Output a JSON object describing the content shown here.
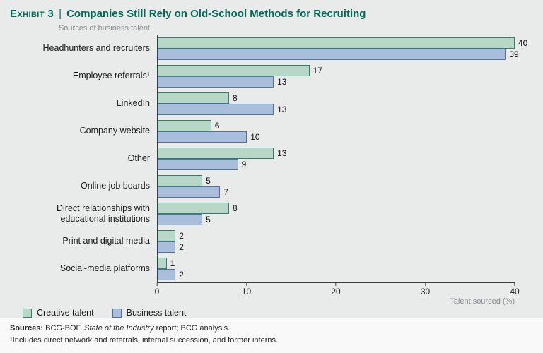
{
  "header": {
    "exhibit_label": "Exhibit 3",
    "separator": "|",
    "title": "Companies Still Rely on Old-School Methods for Recruiting"
  },
  "chart_data": {
    "type": "bar",
    "orientation": "horizontal",
    "note": "Sources of business talent",
    "categories": [
      "Headhunters and recruiters",
      "Employee referrals¹",
      "LinkedIn",
      "Company website",
      "Other",
      "Online job boards",
      "Direct relationships with educational institutions",
      "Print and digital media",
      "Social-media platforms"
    ],
    "series": [
      {
        "name": "Creative talent",
        "color": "#b8d7c7",
        "border": "#2f7f6d",
        "values": [
          40,
          17,
          8,
          6,
          13,
          5,
          8,
          2,
          1
        ]
      },
      {
        "name": "Business talent",
        "color": "#a9bedb",
        "border": "#53729e",
        "values": [
          39,
          13,
          13,
          10,
          9,
          7,
          5,
          2,
          2
        ]
      }
    ],
    "xlim": [
      0,
      40
    ],
    "xticks": [
      0,
      10,
      20,
      30,
      40
    ],
    "xlabel": "Talent sourced (%)",
    "legend_position": "bottom-left",
    "grid": false
  },
  "footer": {
    "sources_label": "Sources:",
    "sources_pre": " BCG-BOF, ",
    "sources_italic": "State of the Industry",
    "sources_post": " report; BCG analysis.",
    "footnote": "¹Includes direct network and referrals, internal succession, and former interns."
  }
}
